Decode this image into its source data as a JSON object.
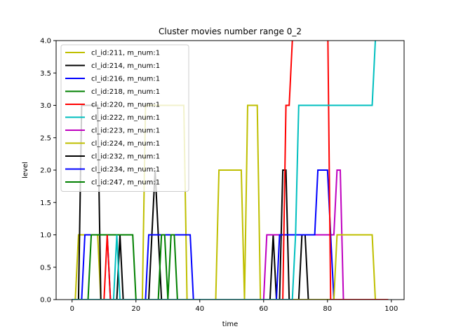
{
  "chart_data": {
    "type": "line",
    "title": "Cluster movies number range 0_2",
    "xlabel": "time",
    "ylabel": "level",
    "xlim": [
      -5,
      104
    ],
    "ylim": [
      0,
      4
    ],
    "xticks": [
      0,
      20,
      40,
      60,
      80,
      100
    ],
    "xtick_labels": [
      "0",
      "20",
      "40",
      "60",
      "80",
      "100"
    ],
    "yticks": [
      0,
      0.5,
      1,
      1.5,
      2,
      2.5,
      3,
      3.5,
      4
    ],
    "ytick_labels": [
      "0.0",
      "0.5",
      "1.0",
      "1.5",
      "2.0",
      "2.5",
      "3.0",
      "3.5",
      "4.0"
    ],
    "grid": false,
    "legend_position": "upper-left",
    "series": [
      {
        "name": "cl_id:211, m_num:1",
        "color": "#bfbf00",
        "x": [
          0,
          1,
          2,
          8,
          9,
          10,
          99
        ],
        "y": [
          0,
          0,
          1,
          1,
          0,
          0,
          0
        ]
      },
      {
        "name": "cl_id:214, m_num:1",
        "color": "#000000",
        "x": [
          0,
          1,
          2,
          3,
          8,
          9,
          14,
          15,
          16,
          99
        ],
        "y": [
          0,
          0,
          0,
          3,
          3,
          0,
          0,
          1,
          0,
          0
        ]
      },
      {
        "name": "cl_id:216, m_num:1",
        "color": "#0000ff",
        "x": [
          0,
          3,
          4,
          5,
          11,
          12,
          99
        ],
        "y": [
          0,
          0,
          1,
          1,
          1,
          0,
          0
        ]
      },
      {
        "name": "cl_id:218, m_num:1",
        "color": "#008000",
        "x": [
          0,
          5,
          6,
          19,
          20,
          99
        ],
        "y": [
          0,
          0,
          1,
          1,
          0,
          0
        ]
      },
      {
        "name": "cl_id:220, m_num:1",
        "color": "#ff0000",
        "x": [
          0,
          10,
          11,
          12,
          99
        ],
        "y": [
          0,
          0,
          1,
          0,
          0
        ]
      },
      {
        "name": "cl_id:222, m_num:1",
        "color": "#00bfbf",
        "x": [
          0,
          13,
          14,
          15,
          99
        ],
        "y": [
          0,
          0,
          1,
          0,
          0
        ]
      },
      {
        "name": "cl_id:223, m_num:1",
        "color": "#bf00bf",
        "x": [
          0,
          99
        ],
        "y": [
          0,
          0
        ]
      },
      {
        "name": "cl_id:224, m_num:1",
        "color": "#bfbf00",
        "x": [
          0,
          22,
          23,
          24,
          35,
          36,
          99
        ],
        "y": [
          0,
          0,
          3,
          3,
          3,
          0,
          0
        ]
      },
      {
        "name": "cl_id:232, m_num:1",
        "color": "#000000",
        "x": [
          0,
          24,
          25,
          26,
          27,
          28,
          99
        ],
        "y": [
          0,
          0,
          1,
          2,
          1,
          0,
          0
        ]
      },
      {
        "name": "cl_id:234, m_num:1",
        "color": "#0000ff",
        "x": [
          0,
          23,
          24,
          37,
          38,
          99
        ],
        "y": [
          0,
          0,
          1,
          1,
          0,
          0
        ]
      },
      {
        "name": "cl_id:247, m_num:1",
        "color": "#008000",
        "x": [
          0,
          27,
          28,
          29,
          30,
          31,
          32,
          33,
          34,
          99
        ],
        "y": [
          0,
          0,
          1,
          1,
          0,
          1,
          1,
          0,
          0,
          0
        ]
      },
      {
        "name": "cl_id:211, m_num:1",
        "color": "#bfbf00",
        "in_legend": false,
        "x": [
          0,
          45,
          46,
          53,
          54,
          55,
          58,
          59,
          99
        ],
        "y": [
          0,
          0,
          2,
          2,
          0,
          3,
          3,
          0,
          0
        ]
      },
      {
        "name": "cl_id:232, m_num:1",
        "color": "#000000",
        "in_legend": false,
        "x": [
          0,
          62,
          63,
          64,
          65,
          66,
          67,
          68,
          69,
          71,
          72,
          73,
          74,
          75,
          99
        ],
        "y": [
          0,
          0,
          1,
          0,
          0,
          2,
          2,
          0,
          0,
          0,
          1,
          1,
          0,
          0,
          0
        ]
      },
      {
        "name": "cl_id:223, m_num:1",
        "color": "#bf00bf",
        "in_legend": false,
        "x": [
          0,
          60,
          61,
          82,
          83,
          84,
          85,
          86,
          99
        ],
        "y": [
          0,
          0,
          1,
          1,
          2,
          2,
          0,
          0,
          0
        ]
      },
      {
        "name": "cl_id:216, m_num:1",
        "color": "#0000ff",
        "in_legend": false,
        "x": [
          0,
          64,
          65,
          76,
          77,
          80,
          81,
          82,
          99
        ],
        "y": [
          0,
          0,
          1,
          1,
          2,
          2,
          1,
          0,
          0
        ]
      },
      {
        "name": "cl_id:224, m_num:1",
        "color": "#bfbf00",
        "in_legend": false,
        "x": [
          0,
          82,
          83,
          94,
          95,
          99
        ],
        "y": [
          0,
          0,
          1,
          1,
          0,
          0
        ]
      },
      {
        "name": "cl_id:220, m_num:1",
        "color": "#ff0000",
        "in_legend": false,
        "x": [
          0,
          66,
          67,
          68,
          69,
          70,
          80,
          81,
          99
        ],
        "y": [
          0,
          0,
          3,
          3,
          4,
          4.6,
          4.6,
          0,
          0
        ]
      },
      {
        "name": "cl_id:222, m_num:1",
        "color": "#00bfbf",
        "in_legend": false,
        "x": [
          0,
          69,
          70,
          71,
          94,
          95,
          96
        ],
        "y": [
          0,
          0,
          1,
          3,
          3,
          4,
          4.6
        ]
      }
    ]
  }
}
